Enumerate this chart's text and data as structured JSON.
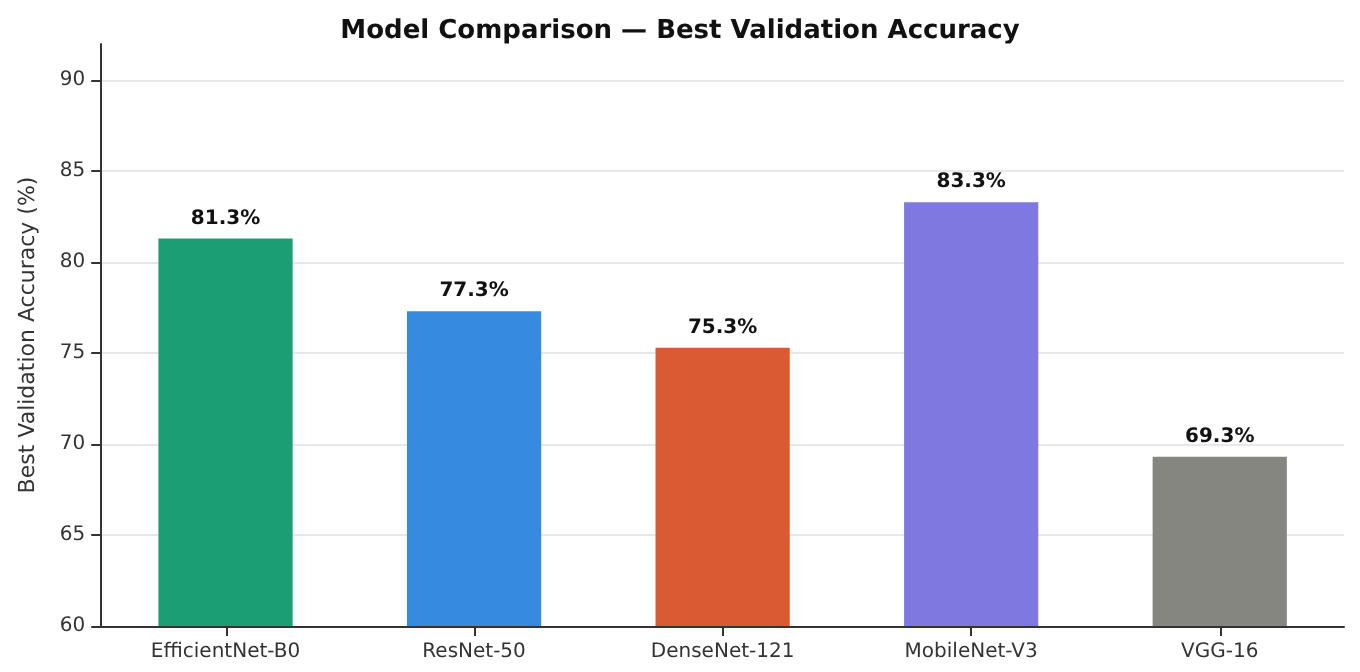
{
  "chart_data": {
    "type": "bar",
    "title": "Model Comparison — Best Validation Accuracy",
    "ylabel": "Best Validation Accuracy (%)",
    "categories": [
      "EfficientNet-B0",
      "ResNet-50",
      "DenseNet-121",
      "MobileNet-V3",
      "VGG-16"
    ],
    "values": [
      81.3,
      77.3,
      75.3,
      83.3,
      69.3
    ],
    "colors": [
      "#1b9e74",
      "#368ae0",
      "#d95a33",
      "#7f78e0",
      "#868680"
    ],
    "value_labels": [
      "81.3%",
      "77.3%",
      "75.3%",
      "83.3%",
      "69.3%"
    ],
    "ylim": [
      60,
      92
    ],
    "yticks": [
      60,
      65,
      70,
      75,
      80,
      85,
      90
    ],
    "grid": "y"
  }
}
